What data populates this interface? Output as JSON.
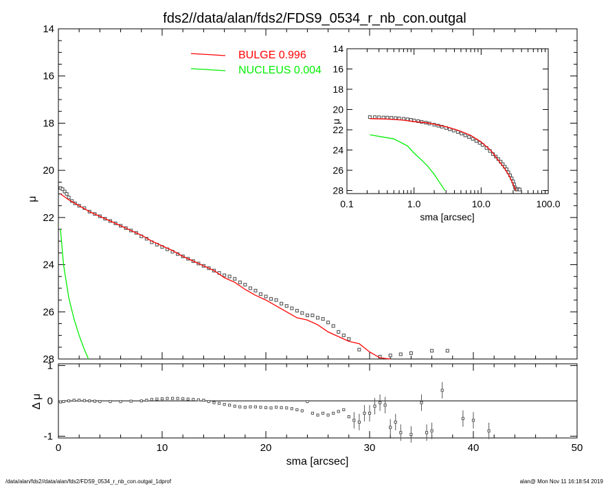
{
  "title": "fds2//data/alan/fds2/FDS9_0534_r_nb_con.outgal",
  "footer_left": "/data/alan/fds2//data/alan/fds2/FDS9_0534_r_nb_con.outgal_1dprof",
  "footer_right": "alan@  Mon Nov 11 16:18:54 2019",
  "colors": {
    "bulge": "#ff0000",
    "nucleus": "#00ee00",
    "data": "#555555",
    "axis": "#000000"
  },
  "chart_data": [
    {
      "id": "main",
      "type": "line",
      "xlabel": "",
      "ylabel": "μ",
      "xlim": [
        0,
        50
      ],
      "ylim": [
        28,
        14
      ],
      "yticks": [
        "14",
        "16",
        "18",
        "20",
        "22",
        "24",
        "26",
        "28"
      ],
      "legend": [
        {
          "name": "BULGE",
          "value": "0.996",
          "color": "#ff0000"
        },
        {
          "name": "NUCLEUS",
          "value": "0.004",
          "color": "#00ee00"
        }
      ],
      "series": [
        {
          "name": "BULGE",
          "x": [
            0.2,
            1,
            2,
            3,
            4,
            5,
            6,
            7,
            8,
            9,
            10,
            11,
            12,
            13,
            14,
            15,
            16,
            17,
            18,
            19,
            20,
            21,
            22,
            23,
            24,
            25,
            26,
            27,
            28,
            29,
            30,
            31,
            32
          ],
          "y": [
            21.0,
            21.25,
            21.5,
            21.75,
            21.95,
            22.15,
            22.35,
            22.55,
            22.75,
            23.0,
            23.2,
            23.4,
            23.65,
            23.85,
            24.05,
            24.25,
            24.55,
            24.75,
            25.05,
            25.3,
            25.5,
            25.75,
            26.0,
            26.25,
            26.35,
            26.55,
            26.85,
            27.05,
            27.25,
            27.35,
            27.7,
            27.95,
            28.0
          ]
        },
        {
          "name": "NUCLEUS",
          "x": [
            0.2,
            0.5,
            1.0,
            1.5,
            2.0,
            2.5,
            2.9
          ],
          "y": [
            22.5,
            24.0,
            25.4,
            26.3,
            27.0,
            27.6,
            28.0
          ]
        },
        {
          "name": "data",
          "x": [
            0.2,
            0.4,
            0.6,
            0.8,
            1.0,
            1.3,
            1.6,
            2.0,
            2.5,
            3,
            3.5,
            4,
            4.5,
            5,
            5.5,
            6,
            6.5,
            7,
            7.5,
            8,
            8.5,
            9,
            9.5,
            10,
            10.5,
            11,
            11.5,
            12,
            12.5,
            13,
            13.5,
            14,
            14.5,
            15,
            15.5,
            16,
            16.5,
            17,
            17.5,
            18,
            18.5,
            19,
            19.5,
            20,
            20.5,
            21,
            21.5,
            22,
            22.5,
            23,
            23.5,
            24,
            24.5,
            25,
            25.5,
            26,
            26.5,
            27,
            27.5,
            28,
            29,
            31,
            32,
            33,
            34,
            36,
            37.5
          ],
          "y": [
            20.75,
            20.8,
            20.9,
            21.0,
            21.15,
            21.3,
            21.4,
            21.5,
            21.6,
            21.75,
            21.85,
            21.95,
            22.05,
            22.15,
            22.25,
            22.35,
            22.45,
            22.55,
            22.65,
            22.8,
            22.9,
            23.05,
            23.15,
            23.25,
            23.35,
            23.45,
            23.55,
            23.65,
            23.75,
            23.85,
            23.95,
            24.05,
            24.15,
            24.25,
            24.35,
            24.45,
            24.5,
            24.6,
            24.75,
            24.85,
            25.0,
            25.1,
            25.25,
            25.35,
            25.45,
            25.5,
            25.65,
            25.75,
            25.85,
            25.95,
            26.05,
            26.15,
            26.15,
            26.25,
            26.3,
            26.45,
            26.6,
            26.85,
            27.0,
            27.15,
            27.6,
            27.9,
            27.85,
            27.8,
            27.75,
            27.65,
            27.65
          ]
        }
      ]
    },
    {
      "id": "residual",
      "type": "scatter",
      "xlabel": "sma [arcsec]",
      "ylabel": "Δ μ",
      "xlim": [
        0,
        50
      ],
      "ylim": [
        -1.05,
        1.05
      ],
      "xticks": [
        "0",
        "10",
        "20",
        "30",
        "40",
        "50"
      ],
      "yticks": [
        "1",
        "0",
        "-1"
      ],
      "series": [
        {
          "name": "residual",
          "x": [
            0.2,
            0.5,
            1,
            1.5,
            2,
            2.5,
            3,
            3.5,
            4,
            5,
            6,
            7,
            8,
            8.5,
            9,
            9.5,
            10,
            10.5,
            11,
            11.5,
            12,
            12.5,
            13,
            13.5,
            14,
            14.5,
            15,
            15.5,
            16,
            16.5,
            17,
            17.5,
            18,
            18.5,
            19,
            19.5,
            20,
            20.5,
            21,
            21.5,
            22,
            22.5,
            23,
            23.5,
            24,
            24.5,
            25,
            25.5,
            26,
            26.5,
            27,
            27.5,
            28,
            28.5,
            29,
            29.5,
            30,
            30.5,
            31,
            31.5,
            32,
            32.5,
            33,
            34,
            35,
            35.5,
            36,
            37,
            39,
            40,
            41.5
          ],
          "y": [
            -0.03,
            -0.02,
            0.0,
            0.02,
            0.02,
            0.01,
            0.0,
            -0.01,
            -0.02,
            -0.02,
            -0.02,
            -0.01,
            0.0,
            0.02,
            0.04,
            0.05,
            0.06,
            0.07,
            0.07,
            0.07,
            0.06,
            0.05,
            0.04,
            0.03,
            0.02,
            -0.02,
            -0.05,
            -0.07,
            -0.1,
            -0.12,
            -0.15,
            -0.17,
            -0.18,
            -0.17,
            -0.17,
            -0.18,
            -0.19,
            -0.2,
            -0.18,
            -0.19,
            -0.2,
            -0.22,
            -0.25,
            -0.28,
            -0.02,
            -0.35,
            -0.4,
            -0.35,
            -0.4,
            -0.35,
            -0.3,
            -0.25,
            -0.45,
            -0.55,
            -0.6,
            -0.35,
            -0.35,
            -0.15,
            -0.05,
            -0.12,
            -0.75,
            -0.6,
            -0.9,
            -0.95,
            -0.05,
            -0.9,
            -0.85,
            0.3,
            -0.5,
            -0.55,
            -0.85
          ]
        }
      ]
    },
    {
      "id": "inset",
      "type": "line",
      "xlabel": "sma [arcsec]",
      "ylabel": "μ",
      "xscale": "log",
      "xlim": [
        0.1,
        100
      ],
      "ylim": [
        28.3,
        14
      ],
      "xticks": [
        "0.1",
        "1.0",
        "10.0",
        "100.0"
      ],
      "yticks": [
        "14",
        "16",
        "18",
        "20",
        "22",
        "24",
        "26",
        "28"
      ],
      "series": [
        {
          "name": "BULGE",
          "x": [
            0.22,
            0.4,
            0.7,
            1.0,
            1.5,
            2,
            3,
            4,
            5,
            7,
            10,
            14,
            18,
            22,
            26,
            30,
            33
          ],
          "y": [
            20.9,
            20.95,
            21.05,
            21.2,
            21.3,
            21.45,
            21.7,
            21.95,
            22.15,
            22.55,
            23.2,
            24.05,
            25.0,
            25.75,
            26.5,
            27.35,
            28.0
          ]
        },
        {
          "name": "NUCLEUS",
          "x": [
            0.22,
            0.5,
            0.8,
            1.0,
            1.3,
            1.6,
            2.0,
            2.4,
            2.9
          ],
          "y": [
            22.5,
            22.9,
            23.6,
            24.3,
            25.0,
            25.6,
            26.4,
            27.2,
            28.0
          ]
        },
        {
          "name": "data",
          "x": [
            0.22,
            0.26,
            0.3,
            0.35,
            0.4,
            0.46,
            0.53,
            0.6,
            0.7,
            0.8,
            0.9,
            1.0,
            1.15,
            1.3,
            1.5,
            1.7,
            2.0,
            2.3,
            2.6,
            3.0,
            3.4,
            3.9,
            4.5,
            5.1,
            5.8,
            6.6,
            7.5,
            8.5,
            9.5,
            10.5,
            12,
            13.5,
            15,
            16.5,
            18,
            19.5,
            21,
            22.5,
            24,
            25.5,
            27,
            28.5,
            30,
            31,
            32,
            33,
            34,
            36,
            37.5
          ],
          "y": [
            20.75,
            20.76,
            20.77,
            20.79,
            20.8,
            20.82,
            20.85,
            20.88,
            20.92,
            20.97,
            21.02,
            21.08,
            21.15,
            21.22,
            21.3,
            21.38,
            21.5,
            21.6,
            21.7,
            21.82,
            21.95,
            22.08,
            22.22,
            22.38,
            22.55,
            22.72,
            22.9,
            23.1,
            23.3,
            23.5,
            23.8,
            24.1,
            24.4,
            24.65,
            24.9,
            25.15,
            25.4,
            25.65,
            25.9,
            26.2,
            26.5,
            26.8,
            27.1,
            27.4,
            27.7,
            27.85,
            27.9,
            27.85,
            27.9
          ]
        }
      ]
    }
  ]
}
